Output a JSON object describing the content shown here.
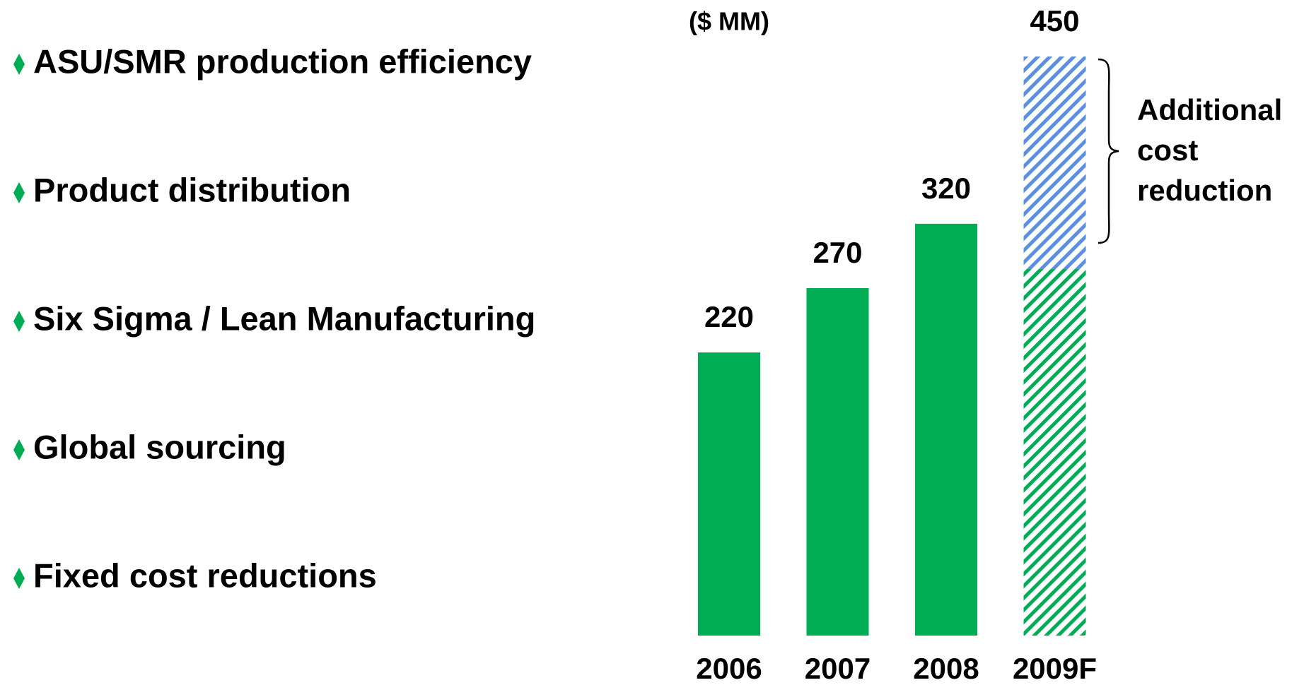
{
  "bullets": [
    "ASU/SMR production efficiency",
    "Product distribution",
    "Six Sigma / Lean Manufacturing",
    "Global sourcing",
    "Fixed cost reductions"
  ],
  "chart_data": {
    "type": "bar",
    "unit": "($ MM)",
    "categories": [
      "2006",
      "2007",
      "2008",
      "2009F"
    ],
    "series": [
      {
        "color": "#00ad55",
        "values": [
          220,
          270,
          320,
          285
        ]
      },
      {
        "color": "#5b8fe0",
        "values": [
          null,
          null,
          null,
          165
        ]
      }
    ],
    "totals": [
      220,
      270,
      320,
      450
    ],
    "hatched": [
      false,
      false,
      false,
      true
    ],
    "ylim": [
      0,
      450
    ],
    "annotation": [
      "Additional",
      "cost",
      "reduction"
    ]
  }
}
